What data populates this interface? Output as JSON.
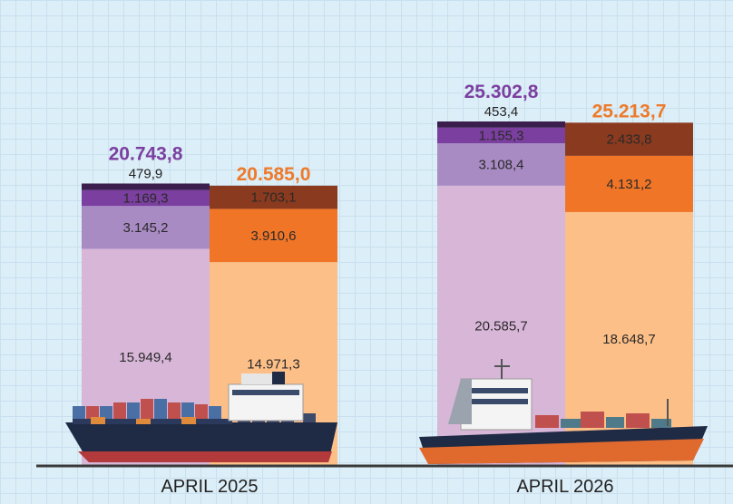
{
  "chart_data": {
    "type": "bar",
    "stacked": true,
    "grid": true,
    "categories": [
      "APRIL 2025",
      "APRIL 2026"
    ],
    "series": [
      {
        "color_key": "purple",
        "totals": [
          "20.743,8",
          "25.302,8"
        ],
        "total_values": [
          20743.8,
          25302.8
        ],
        "segments": [
          {
            "values": [
              15949.4,
              20585.7
            ],
            "labels": [
              "15.949,4",
              "20.585,7"
            ],
            "color": "#d8b6d8"
          },
          {
            "values": [
              3145.2,
              3108.4
            ],
            "labels": [
              "3.145,2",
              "3.108,4"
            ],
            "color": "#a98bc4"
          },
          {
            "values": [
              1169.3,
              1155.3
            ],
            "labels": [
              "1.169,3",
              "1.155,3"
            ],
            "color": "#7b3fa0"
          },
          {
            "values": [
              479.9,
              453.4
            ],
            "labels": [
              "479,9",
              "453,4"
            ],
            "color": "#3b1d4e",
            "label_outside": true
          }
        ]
      },
      {
        "color_key": "orange",
        "totals": [
          "20.585,0",
          "25.213,7"
        ],
        "total_values": [
          20585.0,
          25213.7
        ],
        "segments": [
          {
            "values": [
              14971.3,
              18648.7
            ],
            "labels": [
              "14.971,3",
              "18.648,7"
            ],
            "color": "#fdbf88"
          },
          {
            "values": [
              3910.6,
              4131.2
            ],
            "labels": [
              "3.910,6",
              "4.131,2"
            ],
            "color": "#f07527"
          },
          {
            "values": [
              1703.1,
              2433.8
            ],
            "labels": [
              "1.703,1",
              "2.433,8"
            ],
            "color": "#8a3a1e"
          }
        ]
      }
    ],
    "colors": {
      "purple_total": "#7b3fa0",
      "orange_total": "#ee7a2a",
      "baseline": "#3a3a3a"
    }
  }
}
